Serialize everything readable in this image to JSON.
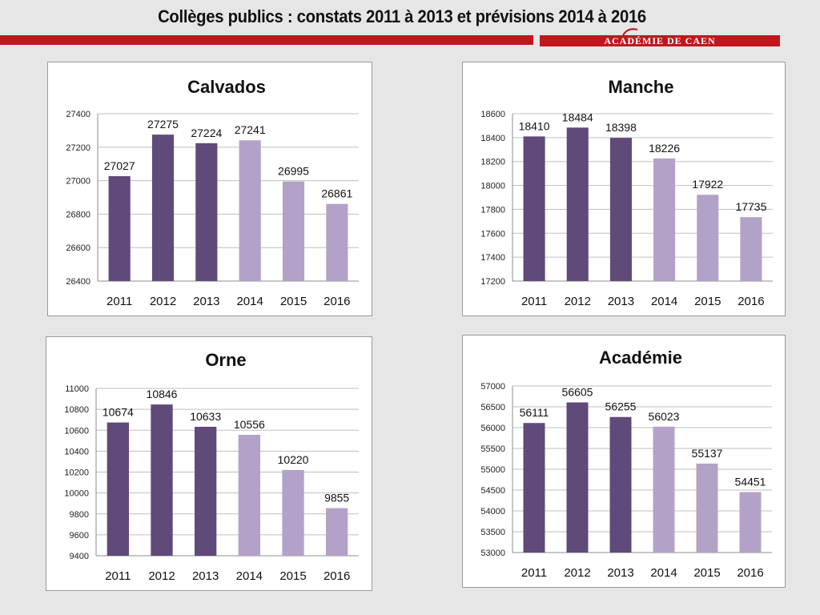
{
  "page": {
    "title": "Collèges publics : constats 2011 à 2013 et prévisions 2014 à 2016",
    "brand": "ACADÉMIE DE CAEN"
  },
  "colors": {
    "constat": "#5f4a7a",
    "prevision": "#b3a2c7",
    "accent": "#c2161f"
  },
  "chart_data": [
    {
      "type": "bar",
      "title": "Calvados",
      "categories": [
        "2011",
        "2012",
        "2013",
        "2014",
        "2015",
        "2016"
      ],
      "values": [
        27027,
        27275,
        27224,
        27241,
        26995,
        26861
      ],
      "ylim": [
        26400,
        27400
      ],
      "yticks": [
        26400,
        26600,
        26800,
        27000,
        27200,
        27400
      ],
      "ytick_labels": [
        "26400",
        "26600",
        "26800",
        "27000",
        "27200",
        "27400"
      ],
      "bar_colors": [
        "#5f4a7a",
        "#5f4a7a",
        "#5f4a7a",
        "#b3a2c7",
        "#b3a2c7",
        "#b3a2c7"
      ],
      "data_labels": [
        "27027",
        "27275",
        "27224",
        "27241",
        "26995",
        "26861"
      ],
      "grid": true,
      "legend": "none"
    },
    {
      "type": "bar",
      "title": "Manche",
      "categories": [
        "2011",
        "2012",
        "2013",
        "2014",
        "2015",
        "2016"
      ],
      "values": [
        18410,
        18484,
        18398,
        18226,
        17922,
        17735
      ],
      "ylim": [
        17200,
        18600
      ],
      "yticks": [
        17200,
        17400,
        17600,
        17800,
        18000,
        18200,
        18400,
        18600
      ],
      "ytick_labels": [
        "17200",
        "17400",
        "17600",
        "17800",
        "18000",
        "18200",
        "18400",
        "18600"
      ],
      "bar_colors": [
        "#5f4a7a",
        "#5f4a7a",
        "#5f4a7a",
        "#b3a2c7",
        "#b3a2c7",
        "#b3a2c7"
      ],
      "data_labels": [
        "18410",
        "18484",
        "18398",
        "18226",
        "17922",
        "17735"
      ],
      "grid": true,
      "legend": "none"
    },
    {
      "type": "bar",
      "title": "Orne",
      "categories": [
        "2011",
        "2012",
        "2013",
        "2014",
        "2015",
        "2016"
      ],
      "values": [
        10674,
        10846,
        10633,
        10556,
        10220,
        9855
      ],
      "ylim": [
        9400,
        11000
      ],
      "yticks": [
        9400,
        9600,
        9800,
        10000,
        10200,
        10400,
        10600,
        10800,
        11000
      ],
      "ytick_labels": [
        "9400",
        "9600",
        "9800",
        "10000",
        "10200",
        "10400",
        "10600",
        "10800",
        "11000"
      ],
      "bar_colors": [
        "#5f4a7a",
        "#5f4a7a",
        "#5f4a7a",
        "#b3a2c7",
        "#b3a2c7",
        "#b3a2c7"
      ],
      "data_labels": [
        "10674",
        "10846",
        "10633",
        "10556",
        "10220",
        "9855"
      ],
      "grid": true,
      "legend": "none"
    },
    {
      "type": "bar",
      "title": "Académie",
      "categories": [
        "2011",
        "2012",
        "2013",
        "2014",
        "2015",
        "2016"
      ],
      "values": [
        56111,
        56605,
        56255,
        56023,
        55137,
        54451
      ],
      "ylim": [
        53000,
        57000
      ],
      "yticks": [
        53000,
        53500,
        54000,
        54500,
        55000,
        55500,
        56000,
        56500,
        57000
      ],
      "ytick_labels": [
        "53000",
        "53500",
        "54000",
        "54500",
        "55000",
        "55500",
        "56000",
        "56500",
        "57000"
      ],
      "bar_colors": [
        "#5f4a7a",
        "#5f4a7a",
        "#5f4a7a",
        "#b3a2c7",
        "#b3a2c7",
        "#b3a2c7"
      ],
      "data_labels": [
        "56111",
        "56605",
        "56255",
        "56023",
        "55137",
        "54451"
      ],
      "grid": true,
      "legend": "none"
    }
  ]
}
